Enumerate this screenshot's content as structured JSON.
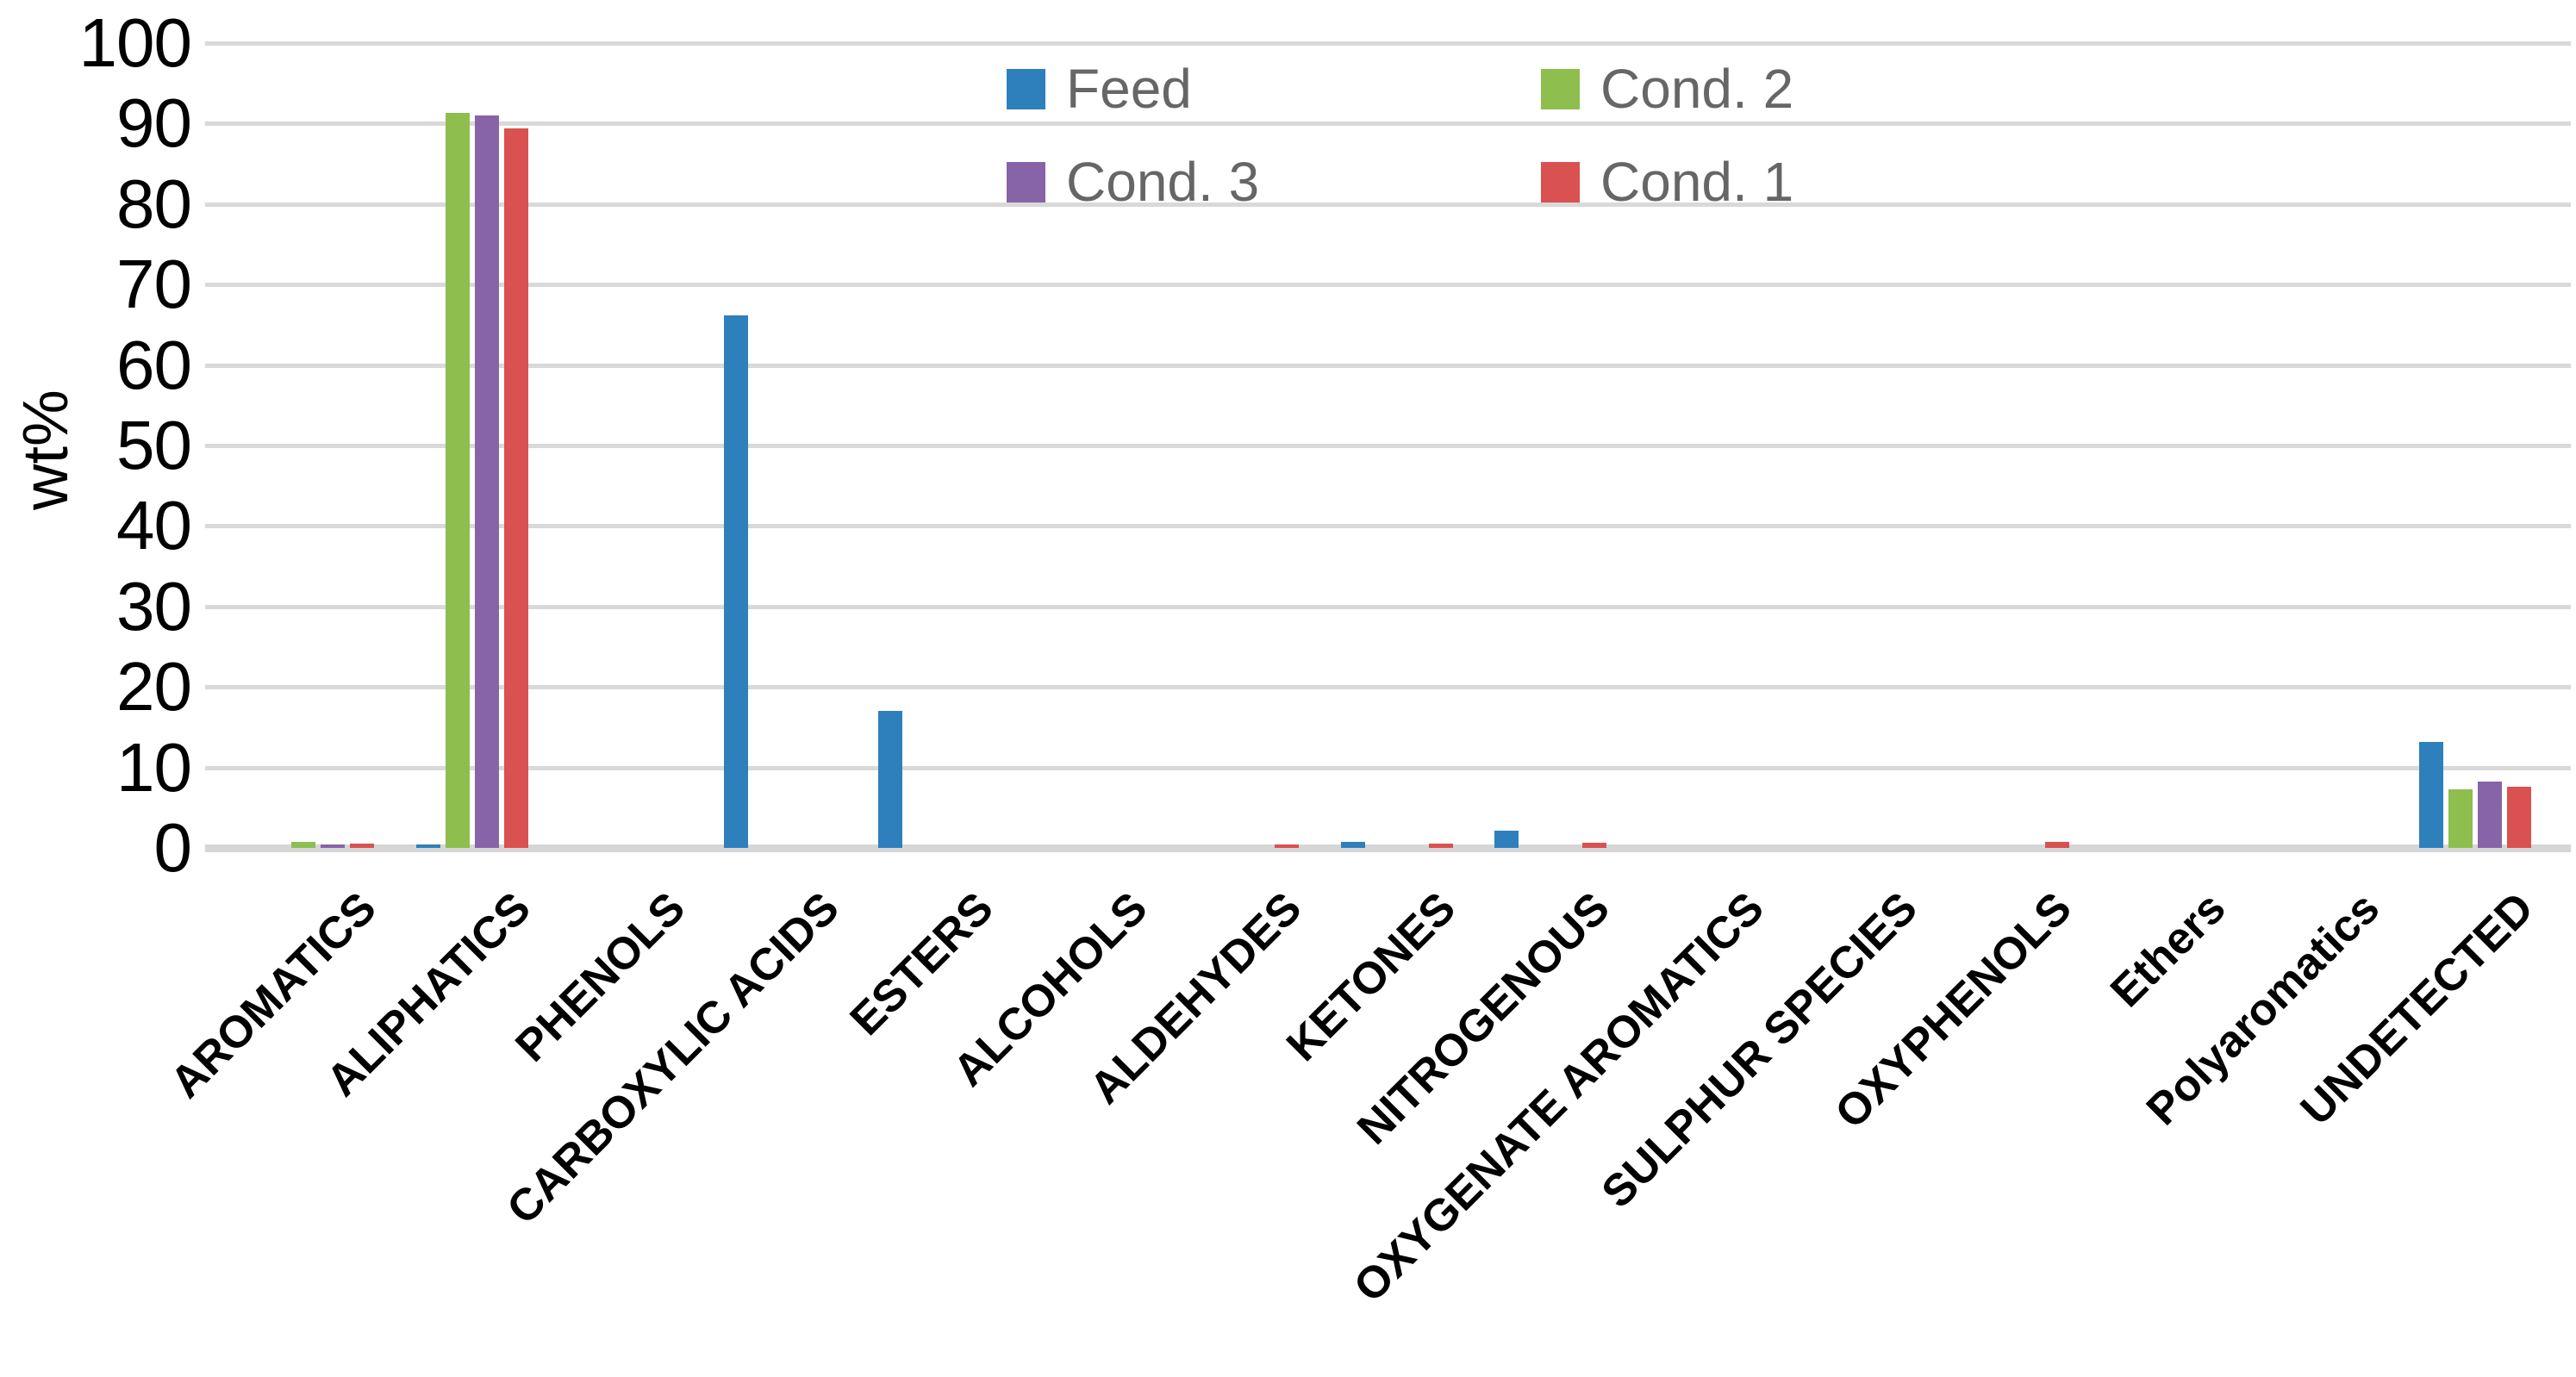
{
  "chart_data": {
    "type": "bar",
    "title": "",
    "xlabel": "",
    "ylabel": "wt%",
    "ylim": [
      0,
      100
    ],
    "yticks": [
      0,
      10,
      20,
      30,
      40,
      50,
      60,
      70,
      80,
      90,
      100
    ],
    "grid": "horizontal",
    "legend_position": "top-center, two columns, two rows",
    "categories": [
      "AROMATICS",
      "ALIPHATICS",
      "PHENOLS",
      "CARBOXYLIC ACIDS",
      "ESTERS",
      "ALCOHOLS",
      "ALDEHYDES",
      "KETONES",
      "NITROGENOUS",
      "OXYGENATE AROMATICS",
      "SULPHUR SPECIES",
      "OXYPHENOLS",
      "Ethers",
      "Polyaromatics",
      "UNDETECTED"
    ],
    "series": [
      {
        "name": "Feed",
        "color": "#2E80BC",
        "values": [
          0,
          0.4,
          0,
          66.2,
          17.0,
          0,
          0,
          0.7,
          2.1,
          0,
          0,
          0,
          0,
          0,
          13.2
        ]
      },
      {
        "name": "Cond. 2",
        "color": "#8DBE4E",
        "values": [
          0.8,
          91.3,
          0,
          0,
          0,
          0,
          0,
          0,
          0,
          0,
          0,
          0,
          0,
          0,
          7.3
        ]
      },
      {
        "name": "Cond. 3",
        "color": "#8764A8",
        "values": [
          0.4,
          91.0,
          0,
          0,
          0,
          0,
          0,
          0,
          0,
          0,
          0,
          0,
          0,
          0,
          8.2
        ]
      },
      {
        "name": "Cond. 1",
        "color": "#D95150",
        "values": [
          0.5,
          89.4,
          0,
          0,
          0,
          0,
          0.4,
          0.5,
          0.6,
          0,
          0,
          0.7,
          0,
          0,
          7.6
        ]
      }
    ],
    "colors": {
      "gridline": "#D9D9D9",
      "tick_label": "#000000",
      "category_label": "#000000",
      "legend_text": "#666666"
    }
  }
}
